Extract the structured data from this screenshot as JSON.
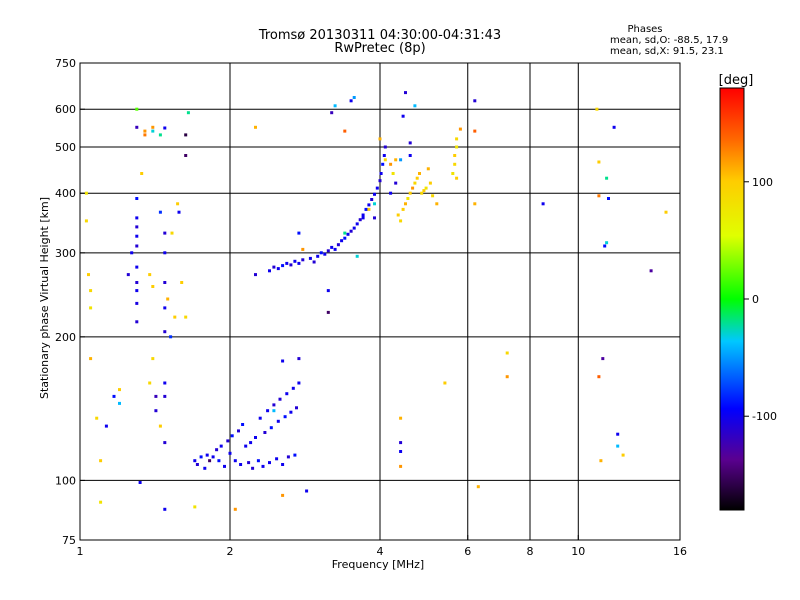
{
  "chart_data": {
    "type": "scatter",
    "title": "Tromsø 20130311 04:30:00-04:31:43",
    "subtitle": "RwPretec (8p)",
    "xlabel": "Frequency [MHz]",
    "ylabel": "Stationary phase Virtual Height [km]",
    "x_scale": "log",
    "y_scale": "log",
    "xlim": [
      1,
      16
    ],
    "ylim": [
      75,
      750
    ],
    "x_ticks": [
      1,
      2,
      4,
      6,
      8,
      10,
      16
    ],
    "x_grid": [
      2,
      4,
      6,
      8,
      10
    ],
    "y_ticks": [
      75,
      100,
      200,
      300,
      400,
      500,
      600,
      750
    ],
    "y_grid": [
      100,
      200,
      300,
      400,
      500,
      600
    ],
    "grid": true,
    "stats": {
      "heading": "Phases",
      "line_o": "mean, sd,O: -88.5, 17.9",
      "line_x": "mean, sd,X:  91.5, 23.1"
    },
    "colorbar": {
      "label": "[deg]",
      "range": [
        -180,
        180
      ],
      "ticks": [
        100,
        0,
        -100
      ]
    },
    "series": [
      {
        "points": [
          [
            1.13,
            130,
            -100
          ],
          [
            1.17,
            150,
            -90
          ],
          [
            1.25,
            270,
            -110
          ],
          [
            1.27,
            300,
            -100
          ],
          [
            1.3,
            215,
            -110
          ],
          [
            1.3,
            235,
            -105
          ],
          [
            1.3,
            250,
            -100
          ],
          [
            1.3,
            260,
            -110
          ],
          [
            1.3,
            280,
            -100
          ],
          [
            1.3,
            310,
            -110
          ],
          [
            1.3,
            325,
            -100
          ],
          [
            1.3,
            340,
            -110
          ],
          [
            1.3,
            355,
            -100
          ],
          [
            1.3,
            390,
            -90
          ],
          [
            1.3,
            550,
            -120
          ],
          [
            1.32,
            99,
            -100
          ],
          [
            1.42,
            140,
            -110
          ],
          [
            1.42,
            150,
            -120
          ],
          [
            1.45,
            365,
            -80
          ],
          [
            1.48,
            87,
            -100
          ],
          [
            1.48,
            120,
            -110
          ],
          [
            1.48,
            150,
            -110
          ],
          [
            1.48,
            160,
            -100
          ],
          [
            1.48,
            205,
            -110
          ],
          [
            1.48,
            230,
            -100
          ],
          [
            1.48,
            260,
            -110
          ],
          [
            1.48,
            300,
            -100
          ],
          [
            1.48,
            330,
            -110
          ],
          [
            1.48,
            548,
            -100
          ],
          [
            1.52,
            200,
            -80
          ],
          [
            1.58,
            365,
            -100
          ],
          [
            1.63,
            480,
            -150
          ],
          [
            1.63,
            530,
            -160
          ],
          [
            1.7,
            110,
            -100
          ],
          [
            1.72,
            108,
            -110
          ],
          [
            1.75,
            112,
            -90
          ],
          [
            1.78,
            106,
            -100
          ],
          [
            1.8,
            113,
            -100
          ],
          [
            1.82,
            110,
            -150
          ],
          [
            1.85,
            112,
            -100
          ],
          [
            1.88,
            116,
            -110
          ],
          [
            1.9,
            110,
            -90
          ],
          [
            1.92,
            118,
            -100
          ],
          [
            1.95,
            107,
            -100
          ],
          [
            1.98,
            121,
            -110
          ],
          [
            2.0,
            114,
            -100
          ],
          [
            2.02,
            124,
            -90
          ],
          [
            2.05,
            110,
            -100
          ],
          [
            2.08,
            127,
            -110
          ],
          [
            2.1,
            108,
            -100
          ],
          [
            2.12,
            131,
            -90
          ],
          [
            2.15,
            118,
            -100
          ],
          [
            2.18,
            109,
            -110
          ],
          [
            2.2,
            120,
            -100
          ],
          [
            2.22,
            106,
            -110
          ],
          [
            2.25,
            123,
            -100
          ],
          [
            2.25,
            270,
            -110
          ],
          [
            2.28,
            110,
            -90
          ],
          [
            2.3,
            135,
            -100
          ],
          [
            2.33,
            107,
            -100
          ],
          [
            2.35,
            126,
            -110
          ],
          [
            2.38,
            140,
            -100
          ],
          [
            2.4,
            109,
            -100
          ],
          [
            2.42,
            129,
            -90
          ],
          [
            2.45,
            144,
            -110
          ],
          [
            2.48,
            111,
            -100
          ],
          [
            2.5,
            133,
            -100
          ],
          [
            2.52,
            148,
            -110
          ],
          [
            2.55,
            108,
            -100
          ],
          [
            2.55,
            178,
            -100
          ],
          [
            2.58,
            136,
            -90
          ],
          [
            2.6,
            152,
            -100
          ],
          [
            2.62,
            112,
            -110
          ],
          [
            2.65,
            139,
            -100
          ],
          [
            2.68,
            156,
            -100
          ],
          [
            2.7,
            113,
            -90
          ],
          [
            2.72,
            142,
            -110
          ],
          [
            2.75,
            160,
            -100
          ],
          [
            2.75,
            180,
            -110
          ],
          [
            2.4,
            275,
            -100
          ],
          [
            2.45,
            280,
            -110
          ],
          [
            2.5,
            278,
            -100
          ],
          [
            2.55,
            282,
            -90
          ],
          [
            2.6,
            285,
            -100
          ],
          [
            2.65,
            283,
            -110
          ],
          [
            2.7,
            288,
            -100
          ],
          [
            2.75,
            285,
            -100
          ],
          [
            2.75,
            330,
            -90
          ],
          [
            2.8,
            290,
            -110
          ],
          [
            2.85,
            95,
            -100
          ],
          [
            2.9,
            292,
            -100
          ],
          [
            2.95,
            287,
            -110
          ],
          [
            3.0,
            295,
            -100
          ],
          [
            3.05,
            300,
            -90
          ],
          [
            3.1,
            298,
            -100
          ],
          [
            3.15,
            303,
            -110
          ],
          [
            3.2,
            308,
            -100
          ],
          [
            3.25,
            305,
            -100
          ],
          [
            3.3,
            312,
            -110
          ],
          [
            3.35,
            318,
            -100
          ],
          [
            3.4,
            322,
            -90
          ],
          [
            3.45,
            328,
            -100
          ],
          [
            3.5,
            333,
            -110
          ],
          [
            3.55,
            338,
            -100
          ],
          [
            3.6,
            345,
            -100
          ],
          [
            3.65,
            352,
            -110
          ],
          [
            3.7,
            360,
            -100
          ],
          [
            3.75,
            370,
            -90
          ],
          [
            3.8,
            378,
            -100
          ],
          [
            3.85,
            388,
            -110
          ],
          [
            3.9,
            398,
            -100
          ],
          [
            3.95,
            410,
            -100
          ],
          [
            4.0,
            425,
            -110
          ],
          [
            4.02,
            440,
            -100
          ],
          [
            4.05,
            460,
            -90
          ],
          [
            4.08,
            480,
            -100
          ],
          [
            4.1,
            500,
            -110
          ],
          [
            3.5,
            625,
            -100
          ],
          [
            3.2,
            590,
            -120
          ],
          [
            3.15,
            250,
            -100
          ],
          [
            3.15,
            225,
            -150
          ],
          [
            3.7,
            355,
            -100
          ],
          [
            3.9,
            355,
            -110
          ],
          [
            4.4,
            120,
            -110
          ],
          [
            4.4,
            115,
            -100
          ],
          [
            4.45,
            580,
            -100
          ],
          [
            4.5,
            650,
            -110
          ],
          [
            4.6,
            480,
            -100
          ],
          [
            4.6,
            510,
            -110
          ],
          [
            4.2,
            400,
            -100
          ],
          [
            4.3,
            420,
            -110
          ],
          [
            6.2,
            625,
            -110
          ],
          [
            8.5,
            380,
            -100
          ],
          [
            11.2,
            180,
            -130
          ],
          [
            11.3,
            310,
            -90
          ],
          [
            11.5,
            390,
            -90
          ],
          [
            12.0,
            125,
            -100
          ],
          [
            11.8,
            550,
            -100
          ],
          [
            14.0,
            275,
            -130
          ]
        ]
      },
      {
        "points": [
          [
            1.03,
            400,
            80
          ],
          [
            1.03,
            350,
            90
          ],
          [
            1.04,
            270,
            100
          ],
          [
            1.05,
            230,
            80
          ],
          [
            1.05,
            180,
            110
          ],
          [
            1.05,
            250,
            90
          ],
          [
            1.08,
            135,
            90
          ],
          [
            1.1,
            110,
            100
          ],
          [
            1.1,
            90,
            80
          ],
          [
            1.2,
            155,
            100
          ],
          [
            1.33,
            440,
            100
          ],
          [
            1.35,
            540,
            120
          ],
          [
            1.35,
            530,
            130
          ],
          [
            1.38,
            270,
            100
          ],
          [
            1.38,
            160,
            90
          ],
          [
            1.4,
            180,
            90
          ],
          [
            1.4,
            550,
            120
          ],
          [
            1.4,
            255,
            100
          ],
          [
            1.45,
            130,
            100
          ],
          [
            1.5,
            240,
            110
          ],
          [
            1.53,
            330,
            90
          ],
          [
            1.55,
            220,
            100
          ],
          [
            1.57,
            380,
            100
          ],
          [
            1.6,
            260,
            100
          ],
          [
            1.63,
            220,
            90
          ],
          [
            1.7,
            88,
            80
          ],
          [
            2.05,
            87,
            120
          ],
          [
            2.25,
            550,
            110
          ],
          [
            2.55,
            93,
            120
          ],
          [
            2.8,
            305,
            120
          ],
          [
            3.4,
            540,
            140
          ],
          [
            3.8,
            370,
            100
          ],
          [
            4.0,
            520,
            110
          ],
          [
            4.1,
            470,
            90
          ],
          [
            4.2,
            460,
            120
          ],
          [
            4.25,
            440,
            80
          ],
          [
            4.3,
            470,
            110
          ],
          [
            4.35,
            360,
            100
          ],
          [
            4.4,
            350,
            90
          ],
          [
            4.45,
            370,
            100
          ],
          [
            4.5,
            380,
            110
          ],
          [
            4.55,
            390,
            80
          ],
          [
            4.6,
            400,
            100
          ],
          [
            4.65,
            410,
            120
          ],
          [
            4.7,
            420,
            90
          ],
          [
            4.75,
            430,
            100
          ],
          [
            4.8,
            440,
            110
          ],
          [
            4.85,
            400,
            90
          ],
          [
            4.9,
            405,
            100
          ],
          [
            4.95,
            410,
            80
          ],
          [
            5.0,
            450,
            110
          ],
          [
            5.05,
            420,
            100
          ],
          [
            5.1,
            395,
            90
          ],
          [
            5.2,
            380,
            110
          ],
          [
            5.6,
            440,
            80
          ],
          [
            5.65,
            460,
            90
          ],
          [
            5.65,
            480,
            100
          ],
          [
            5.7,
            500,
            80
          ],
          [
            5.7,
            520,
            90
          ],
          [
            5.7,
            430,
            100
          ],
          [
            5.8,
            545,
            120
          ],
          [
            6.2,
            540,
            140
          ],
          [
            6.2,
            380,
            110
          ],
          [
            6.3,
            97,
            110
          ],
          [
            4.4,
            107,
            120
          ],
          [
            4.4,
            135,
            110
          ],
          [
            5.4,
            160,
            100
          ],
          [
            7.2,
            185,
            90
          ],
          [
            7.2,
            165,
            120
          ],
          [
            10.9,
            600,
            90
          ],
          [
            11.0,
            465,
            100
          ],
          [
            11.0,
            395,
            130
          ],
          [
            11.0,
            165,
            140
          ],
          [
            11.1,
            110,
            110
          ],
          [
            12.3,
            113,
            100
          ],
          [
            15.0,
            365,
            100
          ]
        ]
      },
      {
        "points": [
          [
            1.3,
            600,
            20
          ],
          [
            1.4,
            540,
            -30
          ],
          [
            1.65,
            590,
            -20
          ],
          [
            3.25,
            610,
            -40
          ],
          [
            3.55,
            635,
            -50
          ],
          [
            3.4,
            330,
            -20
          ],
          [
            3.9,
            380,
            -30
          ],
          [
            4.7,
            610,
            -40
          ],
          [
            1.2,
            145,
            -40
          ],
          [
            1.45,
            530,
            -20
          ],
          [
            11.4,
            430,
            -20
          ],
          [
            11.4,
            315,
            -30
          ],
          [
            12.0,
            118,
            -40
          ],
          [
            4.4,
            470,
            -50
          ],
          [
            3.6,
            295,
            -30
          ],
          [
            2.45,
            140,
            -40
          ]
        ]
      }
    ]
  }
}
